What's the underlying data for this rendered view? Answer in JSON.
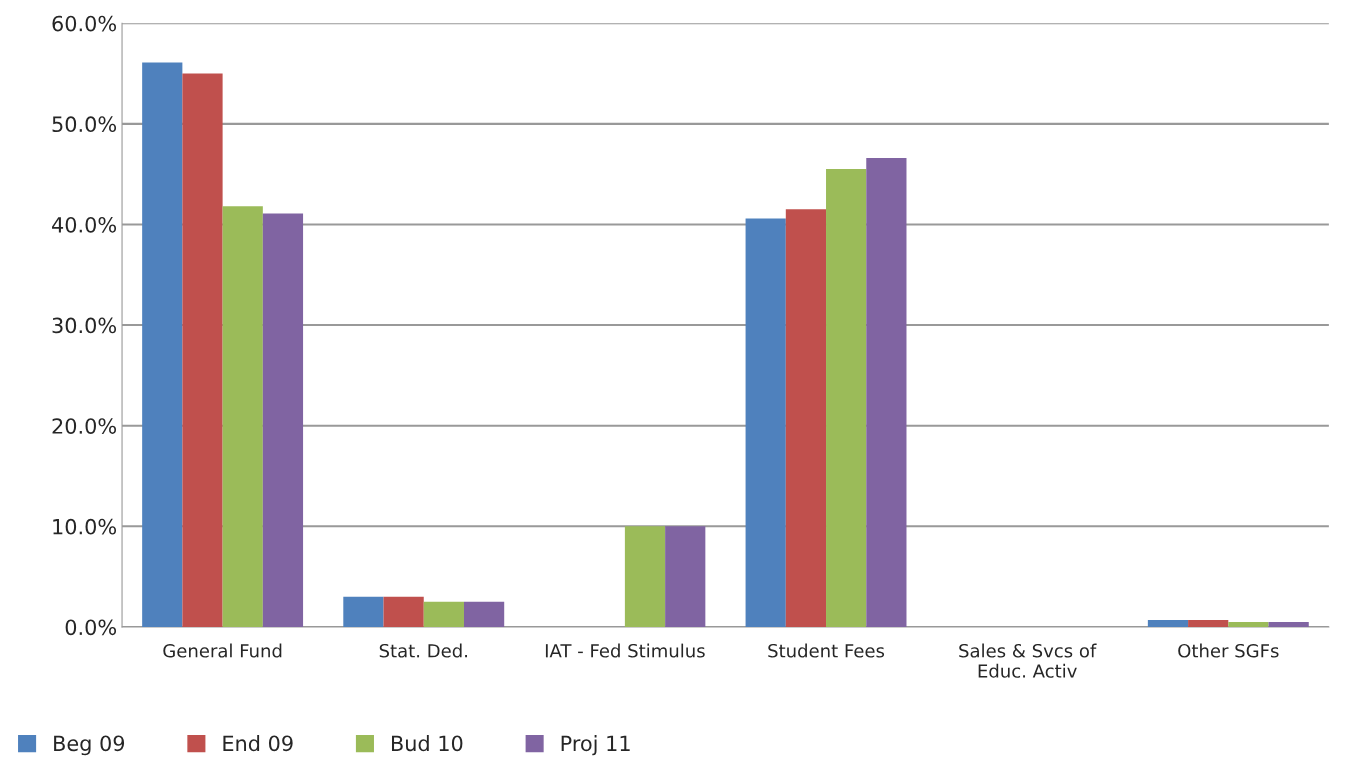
{
  "chart_data": {
    "type": "bar",
    "categories": [
      "General Fund",
      "Stat. Ded.",
      "IAT - Fed Stimulus",
      "Student Fees",
      "Sales & Svcs of\nEduc. Activ",
      "Other SGFs"
    ],
    "series": [
      {
        "name": "Beg 09",
        "color": "#4f81bd",
        "values": [
          56.1,
          3.0,
          0,
          40.6,
          0,
          0.7
        ]
      },
      {
        "name": "End 09",
        "color": "#c0504d",
        "values": [
          55.0,
          3.0,
          0,
          41.5,
          0,
          0.7
        ]
      },
      {
        "name": "Bud 10",
        "color": "#9bbb59",
        "values": [
          41.8,
          2.5,
          10.0,
          45.5,
          0,
          0.5
        ]
      },
      {
        "name": "Proj 11",
        "color": "#8064a2",
        "values": [
          41.1,
          2.5,
          10.0,
          46.6,
          0,
          0.5
        ]
      }
    ],
    "ylim": [
      0,
      60
    ],
    "yticks": [
      {
        "value": 0,
        "label": "0.0%"
      },
      {
        "value": 10,
        "label": "10.0%"
      },
      {
        "value": 20,
        "label": "20.0%"
      },
      {
        "value": 30,
        "label": "30.0%"
      },
      {
        "value": 40,
        "label": "40.0%"
      },
      {
        "value": 50,
        "label": "50.0%"
      },
      {
        "value": 60,
        "label": "60.0%"
      }
    ],
    "grid": "y",
    "legend": "bottom left"
  }
}
